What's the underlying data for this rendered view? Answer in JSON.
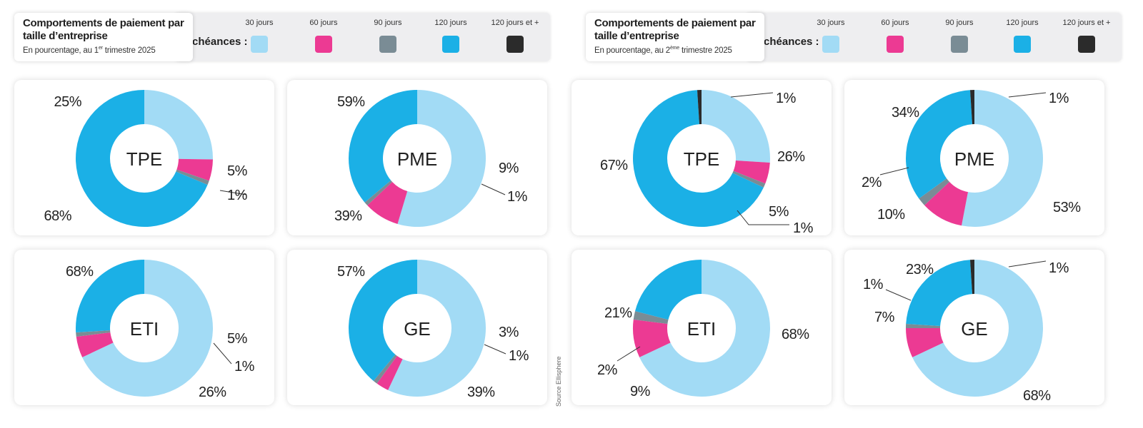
{
  "colors": {
    "30 jours": "#a2dbf5",
    "60 jours": "#ec3a93",
    "90 jours": "#7a8c95",
    "120 jours": "#1bb0e6",
    "120 jours et +": "#2b2b2b"
  },
  "legend": {
    "title": "Échéances :",
    "items": [
      "30 jours",
      "60 jours",
      "90 jours",
      "120 jours",
      "120 jours et +"
    ]
  },
  "source": "Source Ellisphere",
  "panels": [
    {
      "title": "Comportements de paiement par taille d’entreprise",
      "subtitle_before": "En pourcentage, au 1",
      "subtitle_sup": "er",
      "subtitle_after": " trimestre 2025"
    },
    {
      "title": "Comportements de paiement par taille d’entreprise",
      "subtitle_before": "En pourcentage, au 2",
      "subtitle_sup": "ème",
      "subtitle_after": " trimestre 2025"
    }
  ],
  "chart_data": [
    {
      "type": "pie",
      "period": "T1 2025",
      "title": "TPE",
      "categories": [
        "30 jours",
        "60 jours",
        "90 jours",
        "120 jours"
      ],
      "values": [
        25,
        5,
        1,
        68
      ],
      "labels": [
        "25%",
        "5%",
        "1%",
        "68%"
      ]
    },
    {
      "type": "pie",
      "period": "T1 2025",
      "title": "PME",
      "categories": [
        "30 jours",
        "60 jours",
        "90 jours",
        "120 jours"
      ],
      "values": [
        59,
        9,
        1,
        39
      ],
      "labels": [
        "59%",
        "9%",
        "1%",
        "39%"
      ]
    },
    {
      "type": "pie",
      "period": "T1 2025",
      "title": "ETI",
      "categories": [
        "30 jours",
        "60 jours",
        "90 jours",
        "120 jours"
      ],
      "values": [
        68,
        5,
        1,
        26
      ],
      "labels": [
        "68%",
        "5%",
        "1%",
        "26%"
      ]
    },
    {
      "type": "pie",
      "period": "T1 2025",
      "title": "GE",
      "categories": [
        "30 jours",
        "60 jours",
        "90 jours",
        "120 jours"
      ],
      "values": [
        57,
        3,
        1,
        39
      ],
      "labels": [
        "57%",
        "3%",
        "1%",
        "39%"
      ]
    },
    {
      "type": "pie",
      "period": "T2 2025",
      "title": "TPE",
      "categories": [
        "30 jours",
        "60 jours",
        "90 jours",
        "120 jours",
        "120 jours et +"
      ],
      "values": [
        26,
        5,
        1,
        67,
        1
      ],
      "labels": [
        "26%",
        "5%",
        "1%",
        "67%",
        "1%"
      ]
    },
    {
      "type": "pie",
      "period": "T2 2025",
      "title": "PME",
      "categories": [
        "30 jours",
        "60 jours",
        "90 jours",
        "120 jours",
        "120 jours et +"
      ],
      "values": [
        53,
        10,
        2,
        34,
        1
      ],
      "labels": [
        "53%",
        "10%",
        "2%",
        "34%",
        "1%"
      ]
    },
    {
      "type": "pie",
      "period": "T2 2025",
      "title": "ETI",
      "categories": [
        "30 jours",
        "60 jours",
        "90 jours",
        "120 jours"
      ],
      "values": [
        68,
        9,
        2,
        21
      ],
      "labels": [
        "68%",
        "9%",
        "2%",
        "21%"
      ]
    },
    {
      "type": "pie",
      "period": "T2 2025",
      "title": "GE",
      "categories": [
        "30 jours",
        "60 jours",
        "90 jours",
        "120 jours",
        "120 jours et +"
      ],
      "values": [
        68,
        7,
        1,
        23,
        1
      ],
      "labels": [
        "68%",
        "7%",
        "1%",
        "23%",
        "1%"
      ]
    }
  ]
}
